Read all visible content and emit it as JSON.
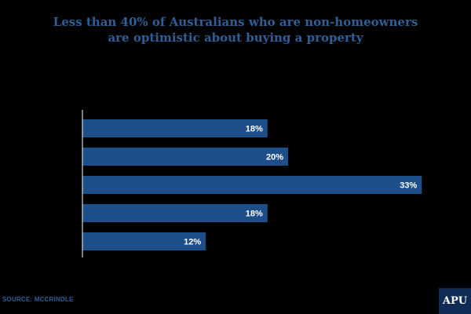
{
  "colors": {
    "bar": "#1d4e89",
    "title": "#2f5f96",
    "axis": "#ffffff",
    "background": "#000000",
    "logo_bg": "#0f2c57"
  },
  "chart_data": {
    "type": "bar",
    "orientation": "horizontal",
    "title_lines": [
      "Less than 40% of Australians who are non-homeowners",
      "are optimistic about buying a property"
    ],
    "subtitle": "",
    "categories": [
      "",
      "",
      "",
      "",
      ""
    ],
    "values": [
      18,
      20,
      33,
      18,
      12
    ],
    "value_labels": [
      "18%",
      "20%",
      "33%",
      "18%",
      "12%"
    ],
    "xlim": [
      0,
      35
    ],
    "xticks": [
      "",
      "",
      "",
      "",
      "",
      "",
      "",
      ""
    ],
    "grid": false,
    "legend": "none"
  },
  "footer": {
    "source": "SOURCE: MCCRINDLE",
    "logo": "APU"
  }
}
